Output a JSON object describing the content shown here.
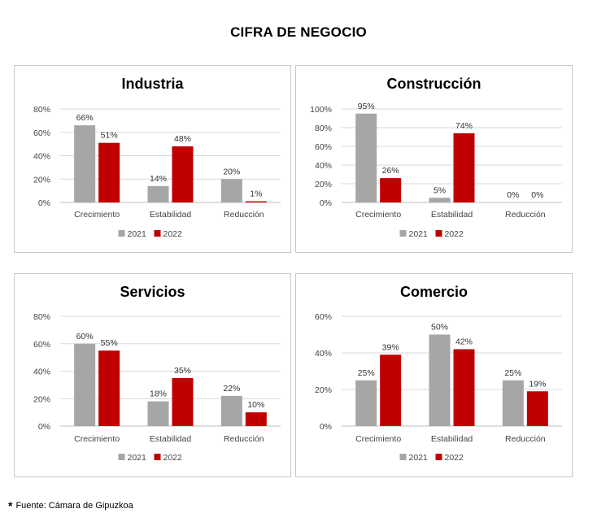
{
  "title": "CIFRA DE NEGOCIO",
  "footnote": {
    "marker": "*",
    "text": "Fuente: Cámara de Gipuzkoa"
  },
  "colors": {
    "2021": "#a6a6a6",
    "2022": "#c00000"
  },
  "chart_data": [
    {
      "type": "bar",
      "title": "Industria",
      "categories": [
        "Crecimiento",
        "Estabilidad",
        "Reducción"
      ],
      "series": [
        {
          "name": "2021",
          "values": [
            66,
            14,
            20
          ]
        },
        {
          "name": "2022",
          "values": [
            51,
            48,
            1
          ]
        }
      ],
      "ylim": [
        0,
        80
      ],
      "yticks": [
        0,
        20,
        40,
        60,
        80
      ],
      "unit": "%",
      "grid": true,
      "legend": "bottom"
    },
    {
      "type": "bar",
      "title": "Construcción",
      "categories": [
        "Crecimiento",
        "Estabilidad",
        "Reducción"
      ],
      "series": [
        {
          "name": "2021",
          "values": [
            95,
            5,
            0
          ]
        },
        {
          "name": "2022",
          "values": [
            26,
            74,
            0
          ]
        }
      ],
      "ylim": [
        0,
        100
      ],
      "yticks": [
        0,
        20,
        40,
        60,
        80,
        100
      ],
      "unit": "%",
      "grid": true,
      "legend": "bottom"
    },
    {
      "type": "bar",
      "title": "Servicios",
      "categories": [
        "Crecimiento",
        "Estabilidad",
        "Reducción"
      ],
      "series": [
        {
          "name": "2021",
          "values": [
            60,
            18,
            22
          ]
        },
        {
          "name": "2022",
          "values": [
            55,
            35,
            10
          ]
        }
      ],
      "ylim": [
        0,
        80
      ],
      "yticks": [
        0,
        20,
        40,
        60,
        80
      ],
      "unit": "%",
      "grid": true,
      "legend": "bottom"
    },
    {
      "type": "bar",
      "title": "Comercio",
      "categories": [
        "Crecimiento",
        "Estabilidad",
        "Reducción"
      ],
      "series": [
        {
          "name": "2021",
          "values": [
            25,
            50,
            25
          ]
        },
        {
          "name": "2022",
          "values": [
            39,
            42,
            19
          ]
        }
      ],
      "ylim": [
        0,
        60
      ],
      "yticks": [
        0,
        20,
        40,
        60
      ],
      "unit": "%",
      "grid": true,
      "legend": "bottom"
    }
  ]
}
